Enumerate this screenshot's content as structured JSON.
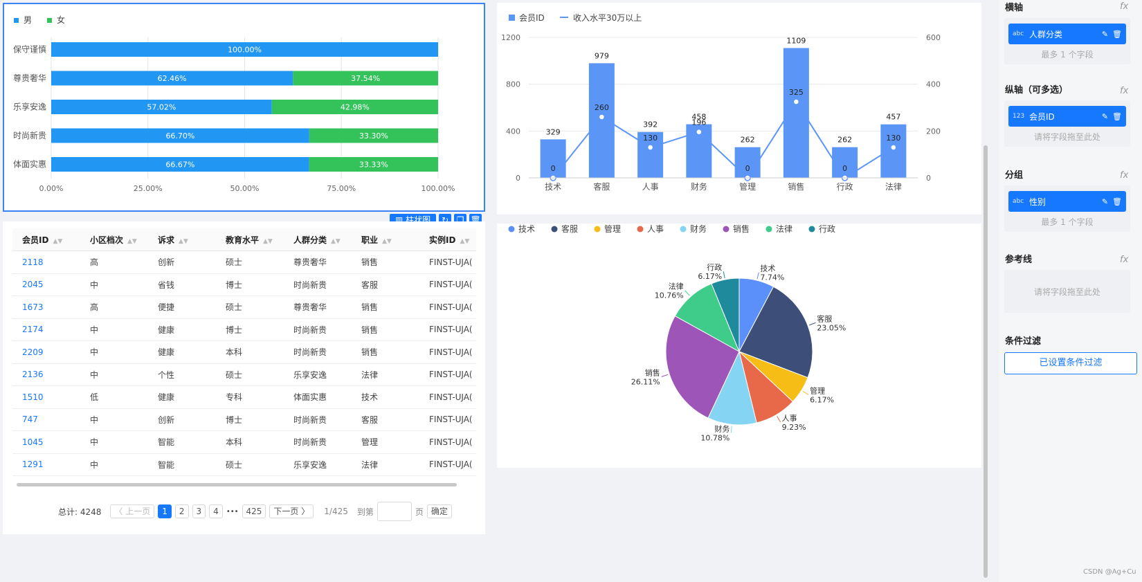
{
  "bar_chart": {
    "legend": [
      {
        "name": "男",
        "color": "#2196f3"
      },
      {
        "name": "女",
        "color": "#34c35b"
      }
    ],
    "chart_data": {
      "type": "bar",
      "orientation": "horizontal-stacked-percent",
      "categories": [
        "保守谨慎",
        "尊贵奢华",
        "乐享安逸",
        "时尚新贵",
        "体面实惠"
      ],
      "series": [
        {
          "name": "男",
          "values": [
            100.0,
            62.46,
            57.02,
            66.7,
            66.67
          ],
          "labels": [
            "100.00%",
            "62.46%",
            "57.02%",
            "66.70%",
            "66.67%"
          ]
        },
        {
          "name": "女",
          "values": [
            0,
            37.54,
            42.98,
            33.3,
            33.33
          ],
          "labels": [
            "",
            "37.54%",
            "42.98%",
            "33.30%",
            "33.33%"
          ]
        }
      ],
      "xticks": [
        "0.00%",
        "25.00%",
        "50.00%",
        "75.00%",
        "100.00%"
      ],
      "xlim": [
        0,
        100
      ]
    }
  },
  "toolbar": {
    "chart_type_label": "柱状图"
  },
  "combo_chart": {
    "legend_bar": "会员ID",
    "legend_line": "收入水平30万以上",
    "bar_color": "#5b96f7",
    "chart_data": {
      "type": "bar",
      "categories": [
        "技术",
        "客服",
        "人事",
        "财务",
        "管理",
        "销售",
        "行政",
        "法律"
      ],
      "series": [
        {
          "name": "会员ID",
          "type": "bar",
          "axis": "left",
          "values": [
            329,
            979,
            392,
            458,
            262,
            1109,
            262,
            457
          ]
        },
        {
          "name": "收入水平30万以上",
          "type": "line",
          "axis": "right",
          "values": [
            0,
            260,
            130,
            196,
            0,
            325,
            0,
            130
          ]
        }
      ],
      "yticks_left": [
        "0",
        "400",
        "800",
        "1200"
      ],
      "yticks_right": [
        "0",
        "200",
        "400",
        "600"
      ],
      "ylim_left": [
        0,
        1200
      ],
      "ylim_right": [
        0,
        600
      ]
    }
  },
  "pie_chart": {
    "chart_data": {
      "type": "pie",
      "slices": [
        {
          "name": "技术",
          "value": 7.74,
          "label": "7.74%",
          "color": "#5b8ff9"
        },
        {
          "name": "客服",
          "value": 23.05,
          "label": "23.05%",
          "color": "#3d4f78"
        },
        {
          "name": "管理",
          "value": 6.17,
          "label": "6.17%",
          "color": "#f6bd16"
        },
        {
          "name": "人事",
          "value": 9.23,
          "label": "9.23%",
          "color": "#e8684a"
        },
        {
          "name": "财务",
          "value": 10.78,
          "label": "10.78%",
          "color": "#86d4f3"
        },
        {
          "name": "销售",
          "value": 26.11,
          "label": "26.11%",
          "color": "#9d55b8"
        },
        {
          "name": "法律",
          "value": 10.76,
          "label": "10.76%",
          "color": "#3fcb8a"
        },
        {
          "name": "行政",
          "value": 6.17,
          "label": "6.17%",
          "color": "#1e8a9c"
        }
      ]
    }
  },
  "table": {
    "columns": [
      "会员ID",
      "小区档次",
      "诉求",
      "教育水平",
      "人群分类",
      "职业",
      "实例ID"
    ],
    "rows": [
      [
        "2118",
        "高",
        "创新",
        "硕士",
        "尊贵奢华",
        "销售",
        "FINST-UJA("
      ],
      [
        "2045",
        "中",
        "省钱",
        "博士",
        "时尚新贵",
        "客服",
        "FINST-UJA("
      ],
      [
        "1673",
        "高",
        "便捷",
        "硕士",
        "尊贵奢华",
        "销售",
        "FINST-UJA("
      ],
      [
        "2174",
        "中",
        "健康",
        "博士",
        "时尚新贵",
        "销售",
        "FINST-UJA("
      ],
      [
        "2209",
        "中",
        "健康",
        "本科",
        "时尚新贵",
        "销售",
        "FINST-UJA("
      ],
      [
        "2136",
        "中",
        "个性",
        "硕士",
        "乐享安逸",
        "法律",
        "FINST-UJA("
      ],
      [
        "1510",
        "低",
        "健康",
        "专科",
        "体面实惠",
        "技术",
        "FINST-UJA("
      ],
      [
        "747",
        "中",
        "创新",
        "博士",
        "时尚新贵",
        "客服",
        "FINST-UJA("
      ],
      [
        "1045",
        "中",
        "智能",
        "本科",
        "时尚新贵",
        "管理",
        "FINST-UJA("
      ],
      [
        "1291",
        "中",
        "智能",
        "硕士",
        "乐享安逸",
        "法律",
        "FINST-UJA("
      ]
    ],
    "pagination": {
      "total": "总计: 4248",
      "prev": "上一页",
      "pages": [
        "1",
        "2",
        "3",
        "4"
      ],
      "ellipsis": "•••",
      "last": "425",
      "next": "下一页",
      "page_info": "1/425",
      "goto": "到第",
      "page_unit": "页",
      "confirm": "确定"
    }
  },
  "panel": {
    "x_axis": {
      "title": "横轴",
      "field_type": "abc",
      "field": "人群分类",
      "hint": "最多 1 个字段"
    },
    "y_axis": {
      "title": "纵轴（可多选）",
      "field_type": "123",
      "field": "会员ID",
      "hint": "请将字段拖至此处"
    },
    "group": {
      "title": "分组",
      "field_type": "abc",
      "field": "性别",
      "hint": "最多 1 个字段"
    },
    "ref_line": {
      "title": "参考线",
      "hint": "请将字段拖至此处"
    },
    "filter": {
      "title": "条件过滤",
      "button": "已设置条件过滤"
    },
    "fx": "fx"
  },
  "watermark": "CSDN @Ag+Cu"
}
